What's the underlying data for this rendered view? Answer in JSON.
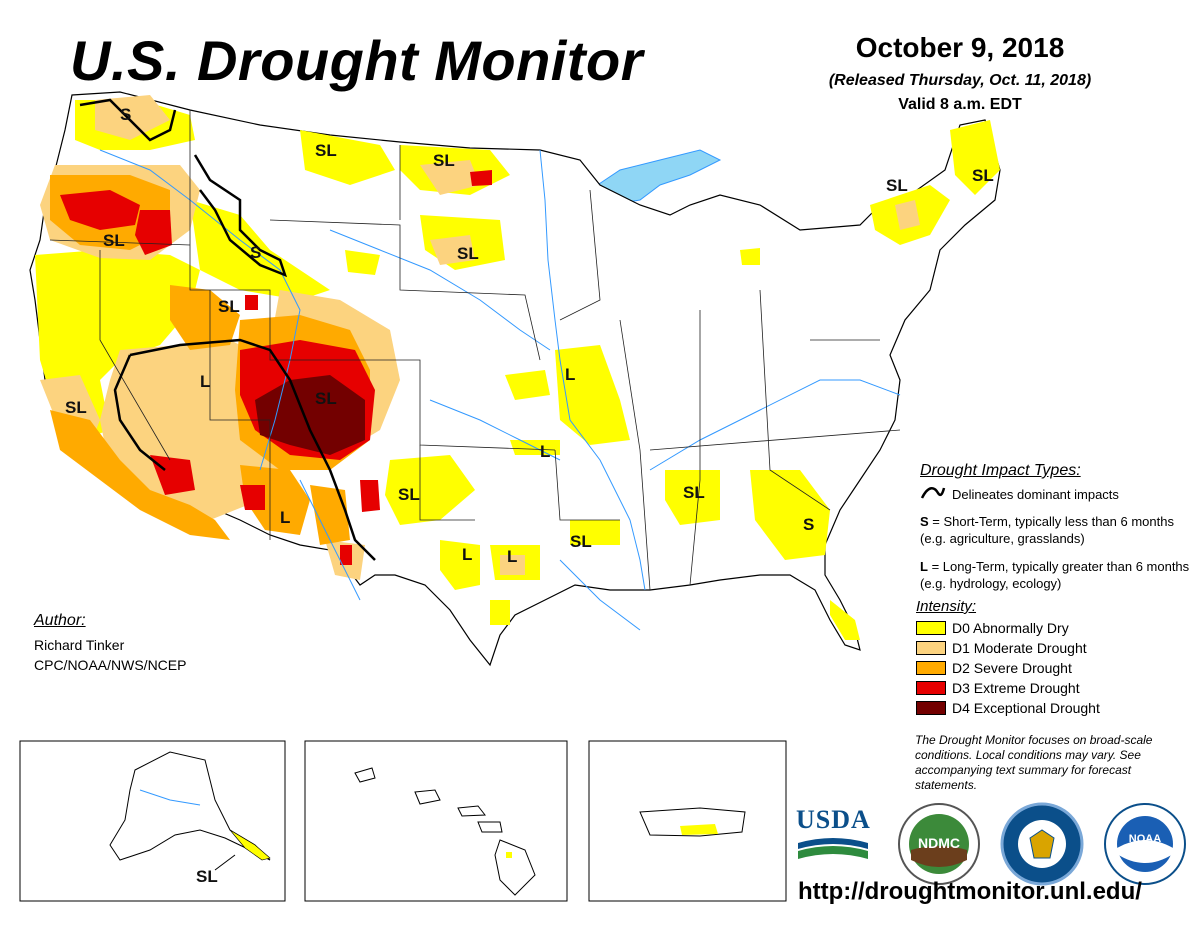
{
  "header": {
    "title": "U.S. Drought Monitor",
    "date": "October 9, 2018",
    "released": "(Released Thursday, Oct. 11, 2018)",
    "valid": "Valid 8 a.m. EDT"
  },
  "map_labels": {
    "sl": "SL",
    "s": "S",
    "l": "L"
  },
  "author": {
    "heading": "Author:",
    "name": "Richard Tinker",
    "org": "CPC/NOAA/NWS/NCEP"
  },
  "impact": {
    "heading": "Drought Impact Types:",
    "line_desc": "Delineates dominant impacts",
    "s_key": "S",
    "s_desc": " = Short-Term, typically less than 6 months (e.g. agriculture, grasslands)",
    "l_key": "L",
    "l_desc": " = Long-Term, typically greater than 6 months (e.g. hydrology, ecology)"
  },
  "intensity": {
    "heading": "Intensity:",
    "levels": [
      {
        "label": "D0 Abnormally Dry",
        "color": "#ffff00"
      },
      {
        "label": "D1 Moderate Drought",
        "color": "#fcd37f"
      },
      {
        "label": "D2 Severe Drought",
        "color": "#ffaa00"
      },
      {
        "label": "D3 Extreme Drought",
        "color": "#e60000"
      },
      {
        "label": "D4 Exceptional Drought",
        "color": "#730000"
      }
    ]
  },
  "note": "The Drought Monitor focuses on broad-scale conditions. Local conditions may vary. See accompanying text summary for forecast statements.",
  "logos": {
    "usda": "USDA",
    "ndmc": "NDMC",
    "noaa": "NOAA"
  },
  "url": "http://droughtmonitor.unl.edu/",
  "colors": {
    "water": "#8fd6f5",
    "river": "#3399ff",
    "border": "#000000"
  }
}
